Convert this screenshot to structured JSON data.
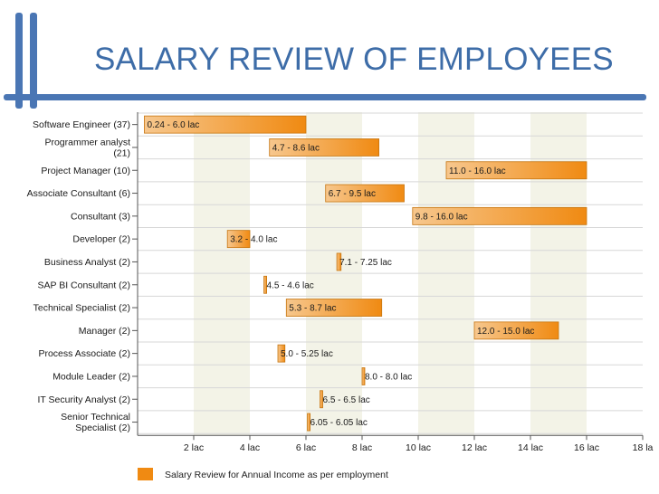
{
  "slide": {
    "title": "SALARY REVIEW OF EMPLOYEES"
  },
  "colors": {
    "accent": "#4a76b4",
    "bar_fill": "#f08a12",
    "bar_fill_light": "#f7c78d",
    "bar_border": "#c67510",
    "band": "#f3f3e7"
  },
  "chart_data": {
    "type": "bar",
    "orientation": "horizontal-range",
    "categories": [
      "Software Engineer (37)",
      "Programmer analyst\n(21)",
      "Project Manager (10)",
      "Associate Consultant (6)",
      "Consultant (3)",
      "Developer (2)",
      "Business Analyst (2)",
      "SAP BI Consultant (2)",
      "Technical Specialist (2)",
      "Manager (2)",
      "Process Associate (2)",
      "Module Leader (2)",
      "IT Security Analyst (2)",
      "Senior Technical\nSpecialist (2)"
    ],
    "series": [
      {
        "name": "Salary Review for Annual Income as per employment",
        "ranges": [
          [
            0.24,
            6.0
          ],
          [
            4.7,
            8.6
          ],
          [
            11.0,
            16.0
          ],
          [
            6.7,
            9.5
          ],
          [
            9.8,
            16.0
          ],
          [
            3.2,
            4.0
          ],
          [
            7.1,
            7.25
          ],
          [
            4.5,
            4.6
          ],
          [
            5.3,
            8.7
          ],
          [
            12.0,
            15.0
          ],
          [
            5.0,
            5.25
          ],
          [
            8.0,
            8.0
          ],
          [
            6.5,
            6.5
          ],
          [
            6.05,
            6.05
          ]
        ],
        "labels": [
          "0.24 - 6.0 lac",
          "4.7 - 8.6 lac",
          "11.0 - 16.0 lac",
          "6.7 - 9.5 lac",
          "9.8 - 16.0 lac",
          "3.2 - 4.0 lac",
          "7.1 - 7.25 lac",
          "4.5 - 4.6 lac",
          "5.3 - 8.7 lac",
          "12.0 - 15.0 lac",
          "5.0 - 5.25 lac",
          "8.0 - 8.0 lac",
          "6.5 - 6.5 lac",
          "6.05 - 6.05 lac"
        ]
      }
    ],
    "xlim": [
      0,
      18
    ],
    "x_ticks": [
      2,
      4,
      6,
      8,
      10,
      12,
      14,
      16,
      18
    ],
    "x_tick_labels": [
      "2 lac",
      "4 lac",
      "6 lac",
      "8 lac",
      "10 lac",
      "12 lac",
      "14 lac",
      "16 lac",
      "18 la"
    ],
    "grid": true,
    "legend_position": "bottom-left"
  }
}
